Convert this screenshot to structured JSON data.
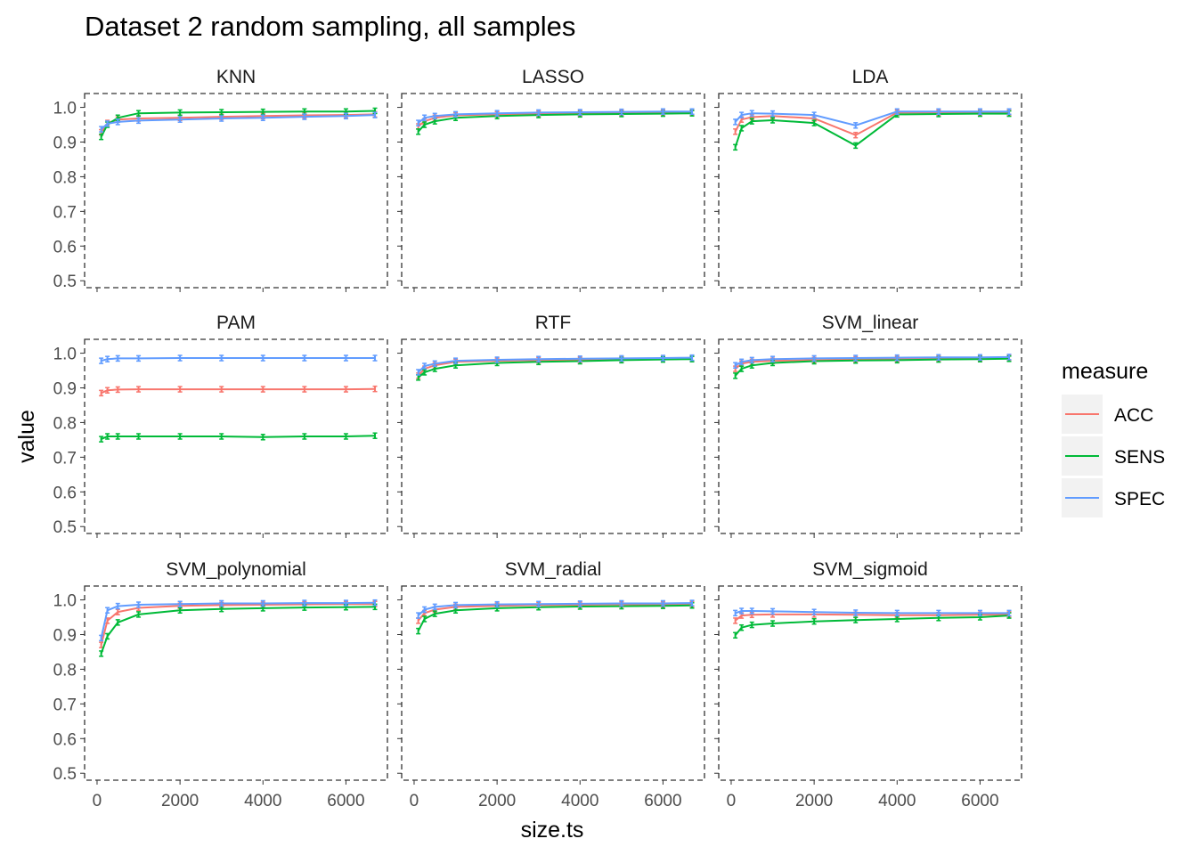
{
  "chart_data": {
    "type": "line",
    "title": "Dataset 2 random sampling, all samples",
    "xlabel": "size.ts",
    "ylabel": "value",
    "xlim": [
      -300,
      7000
    ],
    "ylim": [
      0.48,
      1.04
    ],
    "x_ticks": [
      0,
      2000,
      4000,
      6000
    ],
    "y_ticks": [
      0.5,
      0.6,
      0.7,
      0.8,
      0.9,
      1.0
    ],
    "x_tick_labels": [
      "0",
      "2000",
      "4000",
      "6000"
    ],
    "y_tick_labels": [
      "0.5",
      "0.6",
      "0.7",
      "0.8",
      "0.9",
      "1.0"
    ],
    "legend": {
      "title": "measure",
      "position": "right",
      "entries": [
        {
          "name": "ACC",
          "color": "#F8766D"
        },
        {
          "name": "SENS",
          "color": "#00BA38"
        },
        {
          "name": "SPEC",
          "color": "#619CFF"
        }
      ]
    },
    "x": [
      100,
      250,
      500,
      1000,
      2000,
      3000,
      4000,
      5000,
      6000,
      6700
    ],
    "panels": [
      {
        "name": "KNN",
        "series": [
          {
            "name": "ACC",
            "values": [
              0.928,
              0.955,
              0.965,
              0.968,
              0.97,
              0.973,
              0.975,
              0.977,
              0.978,
              0.98
            ]
          },
          {
            "name": "SENS",
            "values": [
              0.915,
              0.95,
              0.97,
              0.983,
              0.985,
              0.986,
              0.987,
              0.988,
              0.988,
              0.99
            ]
          },
          {
            "name": "SPEC",
            "values": [
              0.937,
              0.953,
              0.958,
              0.962,
              0.965,
              0.968,
              0.97,
              0.973,
              0.975,
              0.978
            ]
          }
        ]
      },
      {
        "name": "LASSO",
        "series": [
          {
            "name": "ACC",
            "values": [
              0.945,
              0.96,
              0.97,
              0.977,
              0.98,
              0.982,
              0.983,
              0.984,
              0.984,
              0.985
            ]
          },
          {
            "name": "SENS",
            "values": [
              0.93,
              0.95,
              0.96,
              0.97,
              0.975,
              0.978,
              0.98,
              0.981,
              0.982,
              0.983
            ]
          },
          {
            "name": "SPEC",
            "values": [
              0.955,
              0.97,
              0.975,
              0.98,
              0.983,
              0.985,
              0.986,
              0.987,
              0.988,
              0.988
            ]
          }
        ]
      },
      {
        "name": "LDA",
        "series": [
          {
            "name": "ACC",
            "values": [
              0.93,
              0.965,
              0.972,
              0.975,
              0.968,
              0.92,
              0.985,
              0.985,
              0.986,
              0.986
            ]
          },
          {
            "name": "SENS",
            "values": [
              0.885,
              0.94,
              0.96,
              0.963,
              0.955,
              0.89,
              0.98,
              0.981,
              0.982,
              0.982
            ]
          },
          {
            "name": "SPEC",
            "values": [
              0.958,
              0.978,
              0.983,
              0.982,
              0.978,
              0.948,
              0.988,
              0.988,
              0.988,
              0.988
            ]
          }
        ]
      },
      {
        "name": "PAM",
        "series": [
          {
            "name": "ACC",
            "values": [
              0.885,
              0.893,
              0.895,
              0.896,
              0.896,
              0.896,
              0.896,
              0.896,
              0.896,
              0.897
            ]
          },
          {
            "name": "SENS",
            "values": [
              0.752,
              0.76,
              0.76,
              0.76,
              0.76,
              0.76,
              0.758,
              0.76,
              0.76,
              0.762
            ]
          },
          {
            "name": "SPEC",
            "values": [
              0.978,
              0.983,
              0.985,
              0.985,
              0.986,
              0.986,
              0.986,
              0.986,
              0.986,
              0.986
            ]
          }
        ]
      },
      {
        "name": "RTF",
        "series": [
          {
            "name": "ACC",
            "values": [
              0.935,
              0.955,
              0.965,
              0.975,
              0.978,
              0.98,
              0.981,
              0.982,
              0.983,
              0.984
            ]
          },
          {
            "name": "SENS",
            "values": [
              0.93,
              0.945,
              0.955,
              0.965,
              0.972,
              0.975,
              0.977,
              0.98,
              0.982,
              0.983
            ]
          },
          {
            "name": "SPEC",
            "values": [
              0.945,
              0.963,
              0.97,
              0.978,
              0.981,
              0.983,
              0.984,
              0.985,
              0.986,
              0.987
            ]
          }
        ]
      },
      {
        "name": "SVM_linear",
        "series": [
          {
            "name": "ACC",
            "values": [
              0.955,
              0.97,
              0.975,
              0.978,
              0.98,
              0.982,
              0.983,
              0.984,
              0.985,
              0.986
            ]
          },
          {
            "name": "SENS",
            "values": [
              0.935,
              0.955,
              0.965,
              0.972,
              0.977,
              0.979,
              0.98,
              0.982,
              0.983,
              0.984
            ]
          },
          {
            "name": "SPEC",
            "values": [
              0.965,
              0.975,
              0.98,
              0.983,
              0.985,
              0.986,
              0.987,
              0.988,
              0.988,
              0.989
            ]
          }
        ]
      },
      {
        "name": "SVM_polynomial",
        "series": [
          {
            "name": "ACC",
            "values": [
              0.87,
              0.94,
              0.965,
              0.977,
              0.983,
              0.985,
              0.986,
              0.987,
              0.988,
              0.988
            ]
          },
          {
            "name": "SENS",
            "values": [
              0.845,
              0.895,
              0.935,
              0.958,
              0.97,
              0.974,
              0.976,
              0.978,
              0.979,
              0.98
            ]
          },
          {
            "name": "SPEC",
            "values": [
              0.89,
              0.97,
              0.982,
              0.986,
              0.988,
              0.99,
              0.99,
              0.991,
              0.991,
              0.992
            ]
          }
        ]
      },
      {
        "name": "SVM_radial",
        "series": [
          {
            "name": "ACC",
            "values": [
              0.94,
              0.962,
              0.972,
              0.98,
              0.983,
              0.985,
              0.986,
              0.987,
              0.987,
              0.988
            ]
          },
          {
            "name": "SENS",
            "values": [
              0.91,
              0.945,
              0.96,
              0.97,
              0.976,
              0.979,
              0.981,
              0.982,
              0.983,
              0.984
            ]
          },
          {
            "name": "SPEC",
            "values": [
              0.955,
              0.972,
              0.98,
              0.985,
              0.987,
              0.988,
              0.989,
              0.99,
              0.99,
              0.991
            ]
          }
        ]
      },
      {
        "name": "SVM_sigmoid",
        "series": [
          {
            "name": "ACC",
            "values": [
              0.94,
              0.955,
              0.957,
              0.958,
              0.958,
              0.957,
              0.956,
              0.956,
              0.957,
              0.958
            ]
          },
          {
            "name": "SENS",
            "values": [
              0.898,
              0.92,
              0.928,
              0.932,
              0.938,
              0.942,
              0.945,
              0.948,
              0.95,
              0.955
            ]
          },
          {
            "name": "SPEC",
            "values": [
              0.962,
              0.968,
              0.968,
              0.967,
              0.965,
              0.963,
              0.962,
              0.962,
              0.962,
              0.962
            ]
          }
        ]
      }
    ]
  }
}
